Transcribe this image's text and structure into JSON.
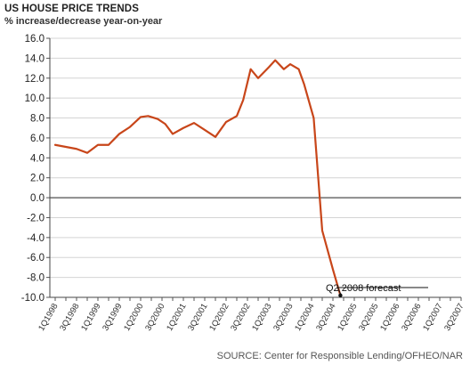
{
  "chart_data": {
    "type": "line",
    "title": "US HOUSE PRICE TRENDS",
    "subtitle": "% increase/decrease year-on-year",
    "source": "SOURCE: Center for Responsible Lending/OFHEO/NAR",
    "ylim": [
      -10,
      16
    ],
    "yticks": [
      "16.0",
      "14.0",
      "12.0",
      "10.0",
      "8.0",
      "6.0",
      "4.0",
      "2.0",
      "0.0",
      "-2.0",
      "-4.0",
      "-6.0",
      "-8.0",
      "-10.0"
    ],
    "xtick_labels": [
      "1Q1998",
      "3Q1998",
      "1Q1999",
      "3Q1999",
      "1Q2000",
      "3Q2000",
      "1Q2001",
      "3Q2001",
      "1Q2002",
      "3Q2002",
      "1Q2003",
      "3Q2003",
      "1Q2004",
      "3Q2004",
      "1Q2005",
      "3Q2005",
      "1Q2006",
      "3Q2006",
      "1Q2007",
      "3Q2007"
    ],
    "series": [
      {
        "color": "#c8461a",
        "points": [
          {
            "x": 0,
            "y": 5.3
          },
          {
            "x": 1,
            "y": 5.1
          },
          {
            "x": 2,
            "y": 4.9
          },
          {
            "x": 3,
            "y": 4.5
          },
          {
            "x": 4,
            "y": 5.3
          },
          {
            "x": 5,
            "y": 5.3
          },
          {
            "x": 6,
            "y": 6.4
          },
          {
            "x": 7,
            "y": 7.1
          },
          {
            "x": 8,
            "y": 8.1
          },
          {
            "x": 8.7,
            "y": 8.2
          },
          {
            "x": 9.6,
            "y": 7.9
          },
          {
            "x": 10.3,
            "y": 7.4
          },
          {
            "x": 11,
            "y": 6.4
          },
          {
            "x": 12,
            "y": 7.0
          },
          {
            "x": 13,
            "y": 7.5
          },
          {
            "x": 14,
            "y": 6.8
          },
          {
            "x": 15,
            "y": 6.1
          },
          {
            "x": 16,
            "y": 7.6
          },
          {
            "x": 17,
            "y": 8.2
          },
          {
            "x": 17.6,
            "y": 9.8
          },
          {
            "x": 18.3,
            "y": 12.9
          },
          {
            "x": 19,
            "y": 12.0
          },
          {
            "x": 20,
            "y": 13.1
          },
          {
            "x": 20.6,
            "y": 13.8
          },
          {
            "x": 21.4,
            "y": 12.9
          },
          {
            "x": 22,
            "y": 13.4
          },
          {
            "x": 22.8,
            "y": 12.9
          },
          {
            "x": 23.3,
            "y": 11.4
          },
          {
            "x": 24.2,
            "y": 8.0
          },
          {
            "x": 25,
            "y": -3.3
          },
          {
            "x": 26,
            "y": -7.2
          },
          {
            "x": 26.7,
            "y": -9.8
          }
        ]
      }
    ],
    "annotation": {
      "text": "Q2 2008 forecast",
      "x": 26.7,
      "y": -9.8
    }
  }
}
